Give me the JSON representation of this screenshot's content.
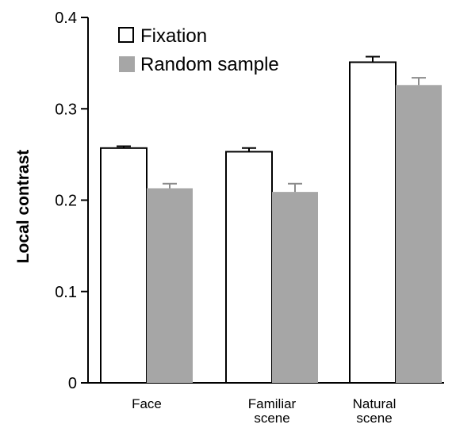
{
  "chart_data": {
    "type": "bar",
    "title": "",
    "xlabel": "",
    "ylabel": "Local contrast",
    "ylim": [
      0,
      0.4
    ],
    "yticks": [
      "0",
      "0.1",
      "0.2",
      "0.3",
      "0.4"
    ],
    "categories": [
      [
        "Face"
      ],
      [
        "Familiar",
        "scene"
      ],
      [
        "Natural",
        "scene"
      ]
    ],
    "series": [
      {
        "name": "Fixation",
        "values": [
          0.257,
          0.253,
          0.351
        ],
        "errors": [
          0.002,
          0.004,
          0.006
        ],
        "color": "#ffffff",
        "stroke": "#000000"
      },
      {
        "name": "Random sample",
        "values": [
          0.213,
          0.209,
          0.326
        ],
        "errors": [
          0.005,
          0.009,
          0.008
        ],
        "color": "#a6a6a6",
        "stroke": "#a6a6a6"
      }
    ],
    "error_bars": true,
    "grid": false,
    "legend_position": "top-left"
  }
}
